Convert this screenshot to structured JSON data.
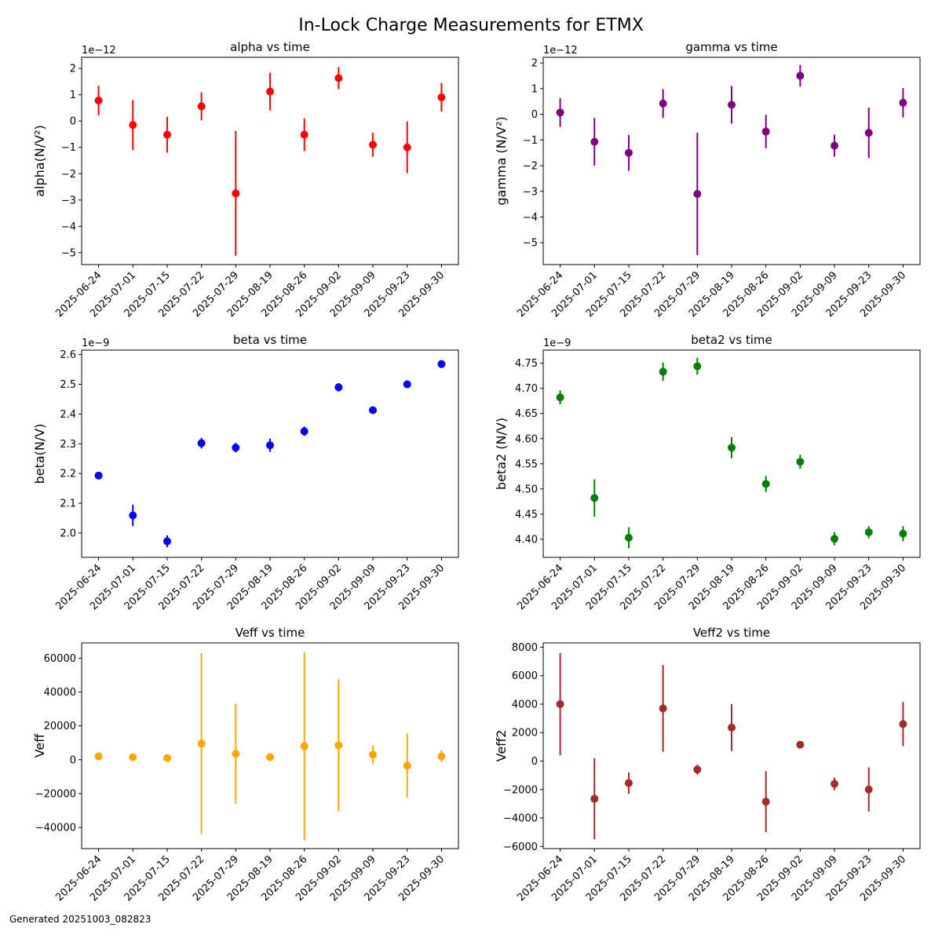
{
  "figure": {
    "title": "In-Lock Charge Measurements for ETMX",
    "footer": "Generated 20251003_082823"
  },
  "chart_data": [
    {
      "type": "scatter",
      "title": "alpha vs time",
      "xlabel": "",
      "ylabel": "alpha(N/V²)",
      "scale_label": "1e−12",
      "color": "#ff0000",
      "categories": [
        "2025-06-24",
        "2025-07-01",
        "2025-07-15",
        "2025-07-22",
        "2025-07-29",
        "2025-08-19",
        "2025-08-26",
        "2025-09-02",
        "2025-09-09",
        "2025-09-23",
        "2025-09-30"
      ],
      "values": [
        0.78,
        -0.15,
        -0.52,
        0.56,
        -2.75,
        1.12,
        -0.52,
        1.63,
        -0.9,
        -1.0,
        0.9
      ],
      "errors": [
        0.56,
        0.95,
        0.68,
        0.53,
        2.37,
        0.72,
        0.62,
        0.42,
        0.45,
        0.98,
        0.54
      ],
      "ylim": [
        -5.45,
        2.42
      ],
      "yticks": [
        -5,
        -4,
        -3,
        -2,
        -1,
        0,
        1,
        2
      ],
      "ytick_labels": [
        "−5",
        "−4",
        "−3",
        "−2",
        "−1",
        "0",
        "1",
        "2"
      ],
      "grid": false
    },
    {
      "type": "scatter",
      "title": "gamma vs time",
      "xlabel": "",
      "ylabel": "gamma (N/V²)",
      "scale_label": "1e−12",
      "color": "#800080",
      "categories": [
        "2025-06-24",
        "2025-07-01",
        "2025-07-15",
        "2025-07-22",
        "2025-07-29",
        "2025-08-19",
        "2025-08-26",
        "2025-09-02",
        "2025-09-09",
        "2025-09-23",
        "2025-09-30"
      ],
      "values": [
        0.07,
        -1.07,
        -1.5,
        0.42,
        -3.1,
        0.37,
        -0.67,
        1.5,
        -1.22,
        -0.72,
        0.45
      ],
      "errors": [
        0.56,
        0.93,
        0.7,
        0.56,
        2.38,
        0.73,
        0.65,
        0.42,
        0.43,
        0.98,
        0.57
      ],
      "ylim": [
        -5.85,
        2.22
      ],
      "yticks": [
        -5,
        -4,
        -3,
        -2,
        -1,
        0,
        1,
        2
      ],
      "ytick_labels": [
        "−5",
        "−4",
        "−3",
        "−2",
        "−1",
        "0",
        "1",
        "2"
      ],
      "grid": false
    },
    {
      "type": "scatter",
      "title": "beta vs time",
      "xlabel": "",
      "ylabel": "beta(N/V)",
      "scale_label": "1e−9",
      "color": "#0000ff",
      "categories": [
        "2025-06-24",
        "2025-07-01",
        "2025-07-15",
        "2025-07-22",
        "2025-07-29",
        "2025-08-19",
        "2025-08-26",
        "2025-09-02",
        "2025-09-09",
        "2025-09-23",
        "2025-09-30"
      ],
      "values": [
        2.193,
        2.059,
        1.972,
        2.302,
        2.287,
        2.295,
        2.342,
        2.49,
        2.413,
        2.5,
        2.568
      ],
      "errors": [
        0.008,
        0.036,
        0.02,
        0.018,
        0.016,
        0.022,
        0.016,
        0.014,
        0.01,
        0.01,
        0.012
      ],
      "ylim": [
        1.918,
        2.615
      ],
      "yticks": [
        2.0,
        2.1,
        2.2,
        2.3,
        2.4,
        2.5,
        2.6
      ],
      "ytick_labels": [
        "2.0",
        "2.1",
        "2.2",
        "2.3",
        "2.4",
        "2.5",
        "2.6"
      ],
      "grid": false
    },
    {
      "type": "scatter",
      "title": "beta2 vs time",
      "xlabel": "",
      "ylabel": "beta2 (N/V)",
      "scale_label": "1e−9",
      "color": "#008000",
      "categories": [
        "2025-06-24",
        "2025-07-01",
        "2025-07-15",
        "2025-07-22",
        "2025-07-29",
        "2025-08-19",
        "2025-08-26",
        "2025-09-02",
        "2025-09-09",
        "2025-09-23",
        "2025-09-30"
      ],
      "values": [
        4.682,
        4.482,
        4.403,
        4.733,
        4.744,
        4.582,
        4.51,
        4.554,
        4.401,
        4.414,
        4.411
      ],
      "errors": [
        0.014,
        0.037,
        0.021,
        0.018,
        0.017,
        0.021,
        0.016,
        0.014,
        0.013,
        0.012,
        0.015
      ],
      "ylim": [
        4.364,
        4.776
      ],
      "yticks": [
        4.4,
        4.45,
        4.5,
        4.55,
        4.6,
        4.65,
        4.7,
        4.75
      ],
      "ytick_labels": [
        "4.40",
        "4.45",
        "4.50",
        "4.55",
        "4.60",
        "4.65",
        "4.70",
        "4.75"
      ],
      "grid": false
    },
    {
      "type": "scatter",
      "title": "Veff vs time",
      "xlabel": "",
      "ylabel": "Veff",
      "scale_label": "",
      "color": "#ffa500",
      "categories": [
        "2025-06-24",
        "2025-07-01",
        "2025-07-15",
        "2025-07-22",
        "2025-07-29",
        "2025-08-19",
        "2025-08-26",
        "2025-09-02",
        "2025-09-09",
        "2025-09-23",
        "2025-09-30"
      ],
      "values": [
        2000,
        1500,
        1000,
        9500,
        3500,
        1500,
        8000,
        8500,
        3000,
        -3500,
        2000
      ],
      "errors": [
        1000,
        800,
        600,
        53500,
        29500,
        1000,
        55500,
        39000,
        5500,
        19000,
        3500
      ],
      "ylim": [
        -52500,
        69000
      ],
      "yticks": [
        -40000,
        -20000,
        0,
        20000,
        40000,
        60000
      ],
      "ytick_labels": [
        "−40000",
        "−20000",
        "0",
        "20000",
        "40000",
        "60000"
      ],
      "grid": false
    },
    {
      "type": "scatter",
      "title": "Veff2 vs time",
      "xlabel": "",
      "ylabel": "Veff2",
      "scale_label": "",
      "color": "#a52a2a",
      "categories": [
        "2025-06-24",
        "2025-07-01",
        "2025-07-15",
        "2025-07-22",
        "2025-07-29",
        "2025-08-19",
        "2025-08-26",
        "2025-09-02",
        "2025-09-09",
        "2025-09-23",
        "2025-09-30"
      ],
      "values": [
        4000,
        -2650,
        -1550,
        3700,
        -600,
        2350,
        -2850,
        1150,
        -1600,
        -2000,
        2600
      ],
      "errors": [
        3600,
        2850,
        750,
        3050,
        350,
        1650,
        2150,
        150,
        450,
        1550,
        1550
      ],
      "ylim": [
        -6150,
        8300
      ],
      "yticks": [
        -6000,
        -4000,
        -2000,
        0,
        2000,
        4000,
        6000,
        8000
      ],
      "ytick_labels": [
        "−6000",
        "−4000",
        "−2000",
        "0",
        "2000",
        "4000",
        "6000",
        "8000"
      ],
      "grid": false
    }
  ]
}
